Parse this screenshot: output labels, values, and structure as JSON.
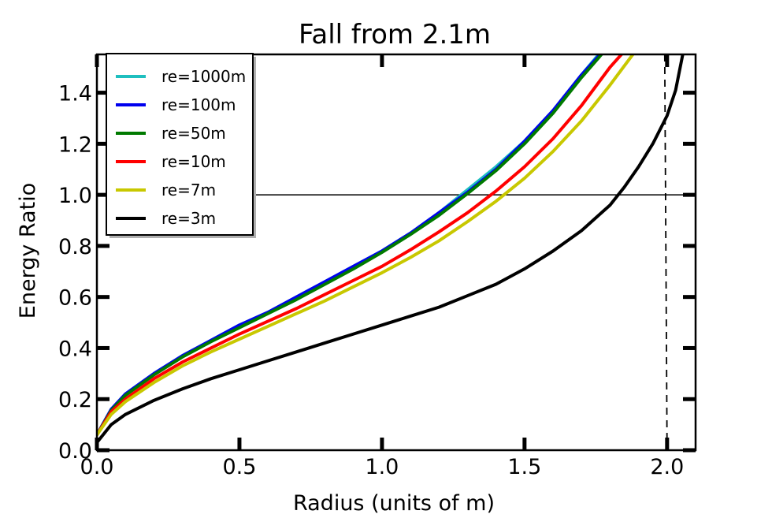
{
  "chart_data": {
    "type": "line",
    "title": "Fall from 2.1m",
    "xlabel": "Radius (units of m)",
    "ylabel": "Energy Ratio",
    "xlim": [
      0.0,
      2.1
    ],
    "ylim": [
      0.0,
      1.55
    ],
    "x_ticks": [
      "0.0",
      "0.5",
      "1.0",
      "1.5",
      "2.0"
    ],
    "y_ticks": [
      "0.0",
      "0.2",
      "0.4",
      "0.6",
      "0.8",
      "1.0",
      "1.2",
      "1.4"
    ],
    "grid": false,
    "legend_position": "top-left",
    "reference_lines": {
      "horizontal_y": 1.0,
      "vertical_x": 2.0
    },
    "series": [
      {
        "name": "re=1000m",
        "color": "#1fbfbf",
        "x": [
          0.0,
          0.05,
          0.1,
          0.2,
          0.3,
          0.4,
          0.5,
          0.6,
          0.7,
          0.8,
          0.9,
          1.0,
          1.1,
          1.2,
          1.3,
          1.4,
          1.5,
          1.6,
          1.7,
          1.76
        ],
        "y": [
          0.06,
          0.16,
          0.22,
          0.3,
          0.37,
          0.43,
          0.49,
          0.54,
          0.6,
          0.66,
          0.72,
          0.78,
          0.85,
          0.93,
          1.02,
          1.11,
          1.21,
          1.33,
          1.47,
          1.55
        ]
      },
      {
        "name": "re=100m",
        "color": "#0000ee",
        "x": [
          0.0,
          0.05,
          0.1,
          0.2,
          0.3,
          0.4,
          0.5,
          0.6,
          0.7,
          0.8,
          0.9,
          1.0,
          1.1,
          1.2,
          1.3,
          1.4,
          1.5,
          1.6,
          1.7,
          1.765
        ],
        "y": [
          0.06,
          0.16,
          0.22,
          0.3,
          0.37,
          0.43,
          0.49,
          0.54,
          0.6,
          0.66,
          0.72,
          0.78,
          0.85,
          0.93,
          1.01,
          1.1,
          1.21,
          1.33,
          1.47,
          1.55
        ]
      },
      {
        "name": "re=50m",
        "color": "#007a00",
        "x": [
          0.0,
          0.05,
          0.1,
          0.2,
          0.3,
          0.4,
          0.5,
          0.6,
          0.7,
          0.8,
          0.9,
          1.0,
          1.1,
          1.2,
          1.3,
          1.4,
          1.5,
          1.6,
          1.7,
          1.77
        ],
        "y": [
          0.06,
          0.155,
          0.215,
          0.295,
          0.365,
          0.425,
          0.48,
          0.535,
          0.59,
          0.65,
          0.71,
          0.775,
          0.845,
          0.92,
          1.005,
          1.095,
          1.2,
          1.32,
          1.46,
          1.55
        ]
      },
      {
        "name": "re=10m",
        "color": "#ff0000",
        "x": [
          0.0,
          0.05,
          0.1,
          0.2,
          0.3,
          0.4,
          0.5,
          0.6,
          0.7,
          0.8,
          0.9,
          1.0,
          1.1,
          1.2,
          1.3,
          1.4,
          1.5,
          1.6,
          1.7,
          1.8,
          1.84
        ],
        "y": [
          0.06,
          0.15,
          0.2,
          0.28,
          0.345,
          0.4,
          0.455,
          0.505,
          0.555,
          0.61,
          0.665,
          0.72,
          0.785,
          0.855,
          0.93,
          1.015,
          1.11,
          1.22,
          1.35,
          1.5,
          1.55
        ]
      },
      {
        "name": "re=7m",
        "color": "#c8c800",
        "x": [
          0.0,
          0.05,
          0.1,
          0.2,
          0.3,
          0.4,
          0.5,
          0.6,
          0.7,
          0.8,
          0.9,
          1.0,
          1.1,
          1.2,
          1.3,
          1.4,
          1.5,
          1.6,
          1.7,
          1.8,
          1.88
        ],
        "y": [
          0.06,
          0.14,
          0.19,
          0.265,
          0.33,
          0.385,
          0.435,
          0.485,
          0.535,
          0.585,
          0.64,
          0.695,
          0.755,
          0.82,
          0.895,
          0.975,
          1.065,
          1.17,
          1.29,
          1.43,
          1.55
        ]
      },
      {
        "name": "re=3m",
        "color": "#000000",
        "x": [
          0.0,
          0.05,
          0.1,
          0.2,
          0.3,
          0.4,
          0.5,
          0.6,
          0.7,
          0.8,
          0.9,
          1.0,
          1.1,
          1.2,
          1.3,
          1.4,
          1.5,
          1.6,
          1.7,
          1.8,
          1.85,
          1.9,
          1.95,
          2.0,
          2.03,
          2.055
        ],
        "y": [
          0.03,
          0.1,
          0.14,
          0.195,
          0.24,
          0.28,
          0.315,
          0.35,
          0.385,
          0.42,
          0.455,
          0.49,
          0.525,
          0.56,
          0.605,
          0.65,
          0.71,
          0.78,
          0.86,
          0.96,
          1.03,
          1.11,
          1.2,
          1.31,
          1.41,
          1.55
        ]
      }
    ]
  }
}
